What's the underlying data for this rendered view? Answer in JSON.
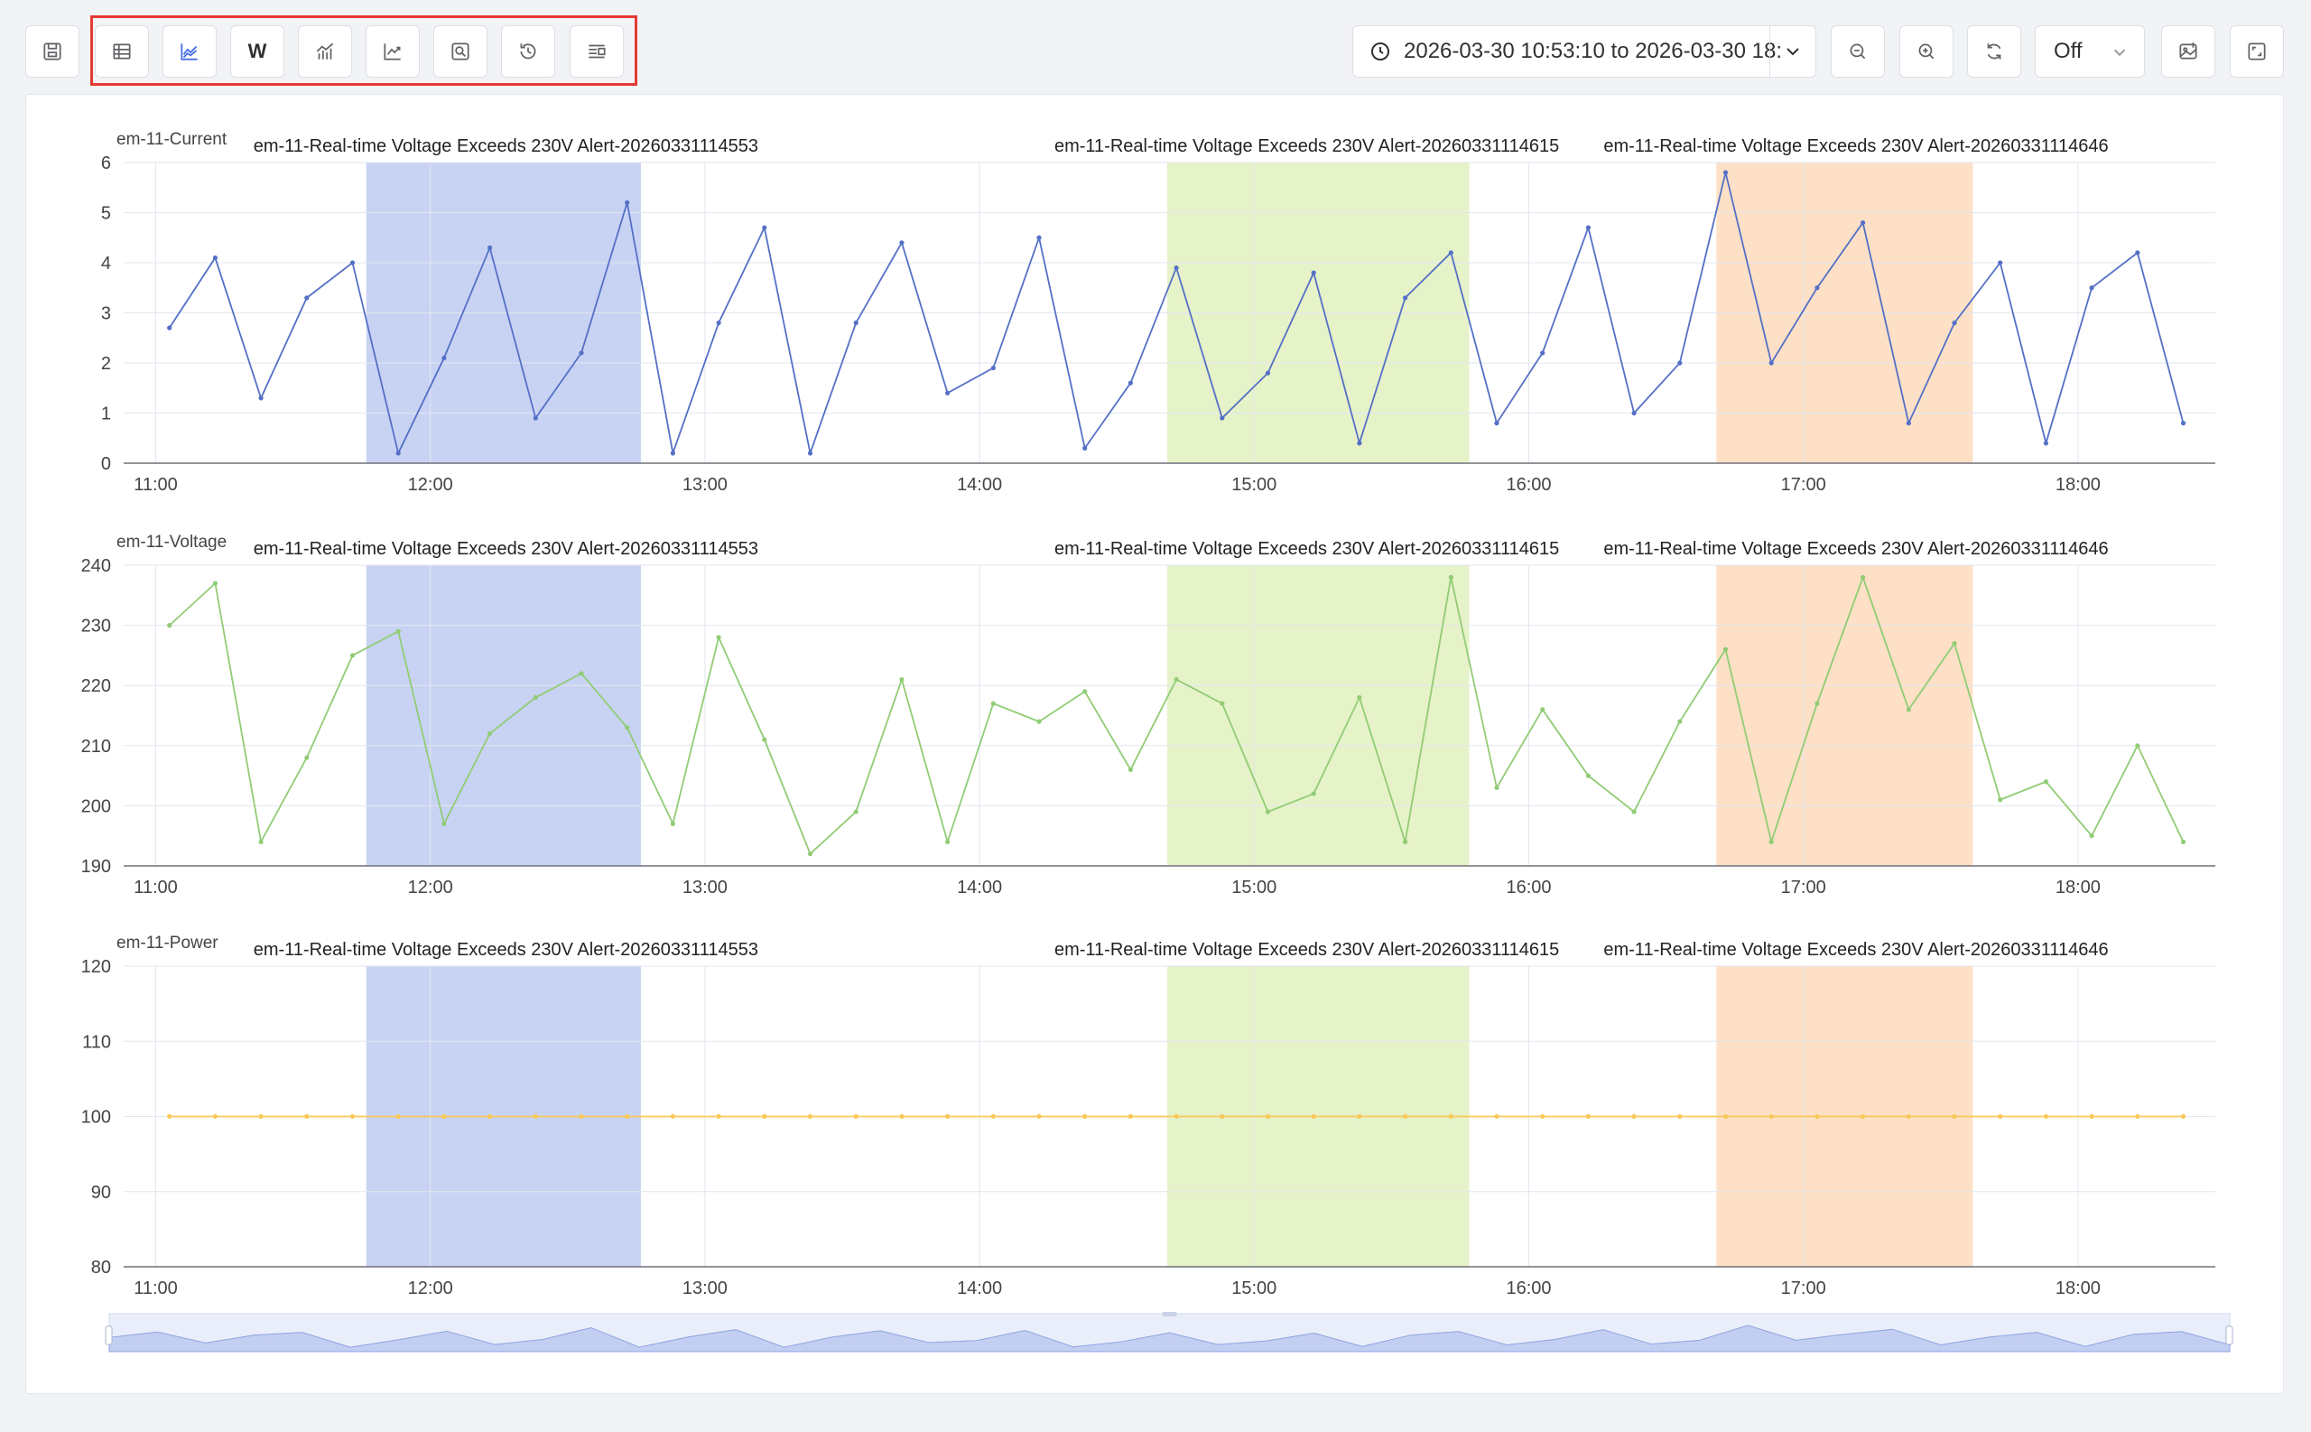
{
  "toolbar": {
    "buttons": [
      {
        "icon": "save-view-icon"
      },
      {
        "icon": "table-icon"
      },
      {
        "icon": "line-chart-icon",
        "active": true
      },
      {
        "icon": "w-text-icon",
        "label": "W"
      },
      {
        "icon": "bar-line-chart-icon"
      },
      {
        "icon": "trend-chart-icon"
      },
      {
        "icon": "zoom-region-icon"
      },
      {
        "icon": "history-icon"
      },
      {
        "icon": "legend-list-icon"
      }
    ],
    "time_range": "2026-03-30 10:53:10 to 2026-03-30 18:",
    "refresh_select": "Off"
  },
  "colors": {
    "current": "#5470c6",
    "voltage": "#91cc75",
    "power": "#fac858",
    "band1": "#c8d3f4",
    "band2": "#e6f2c8",
    "band3": "#fde0c6"
  },
  "chart_data": {
    "type": "line",
    "x_ticks": [
      "11:00",
      "12:00",
      "13:00",
      "14:00",
      "15:00",
      "16:00",
      "17:00",
      "18:00"
    ],
    "x_range": [
      "10:53",
      "18:30"
    ],
    "x": [
      "11:03",
      "11:13",
      "11:23",
      "11:33",
      "11:43",
      "11:53",
      "12:03",
      "12:13",
      "12:23",
      "12:33",
      "12:43",
      "12:53",
      "13:03",
      "13:13",
      "13:23",
      "13:33",
      "13:43",
      "13:53",
      "14:03",
      "14:13",
      "14:23",
      "14:33",
      "14:43",
      "14:53",
      "15:03",
      "15:13",
      "15:23",
      "15:33",
      "15:43",
      "15:53",
      "16:03",
      "16:13",
      "16:23",
      "16:33",
      "16:43",
      "16:53",
      "17:03",
      "17:13",
      "17:23",
      "17:33",
      "17:43",
      "17:53",
      "18:03",
      "18:13",
      "18:23"
    ],
    "annotations": [
      {
        "label": "em-11-Real-time Voltage Exceeds 230V Alert-20260331114553",
        "start": "11:46",
        "end": "12:46"
      },
      {
        "label": "em-11-Real-time Voltage Exceeds 230V Alert-20260331114615",
        "start": "14:41",
        "end": "15:47"
      },
      {
        "label": "em-11-Real-time Voltage Exceeds 230V Alert-20260331114646",
        "start": "16:41",
        "end": "17:37"
      }
    ],
    "panels": [
      {
        "name": "em-11-Current",
        "ylim": [
          0,
          6
        ],
        "y_ticks": [
          0,
          1,
          2,
          3,
          4,
          5,
          6
        ],
        "values": [
          2.7,
          4.1,
          1.3,
          3.3,
          4.0,
          0.2,
          2.1,
          4.3,
          0.9,
          2.2,
          5.2,
          0.2,
          2.8,
          4.7,
          0.2,
          2.8,
          4.4,
          1.4,
          1.9,
          4.5,
          0.3,
          1.6,
          3.9,
          0.9,
          1.8,
          3.8,
          0.4,
          3.3,
          4.2,
          0.8,
          2.2,
          4.7,
          1.0,
          2.0,
          5.8,
          2.0,
          3.5,
          4.8,
          0.8,
          2.8,
          4.0,
          0.4,
          3.5,
          4.2,
          0.8
        ]
      },
      {
        "name": "em-11-Voltage",
        "ylim": [
          190,
          240
        ],
        "y_ticks": [
          190,
          200,
          210,
          220,
          230,
          240
        ],
        "values": [
          230,
          237,
          194,
          208,
          225,
          229,
          197,
          212,
          218,
          222,
          213,
          197,
          228,
          211,
          192,
          199,
          221,
          194,
          217,
          214,
          219,
          206,
          221,
          217,
          199,
          202,
          218,
          194,
          238,
          203,
          216,
          205,
          199,
          214,
          226,
          194,
          217,
          238,
          216,
          227,
          201,
          204,
          195,
          210,
          194
        ]
      },
      {
        "name": "em-11-Power",
        "ylim": [
          80,
          120
        ],
        "y_ticks": [
          80,
          90,
          100,
          110,
          120
        ],
        "values": [
          100,
          100,
          100,
          100,
          100,
          100,
          100,
          100,
          100,
          100,
          100,
          100,
          100,
          100,
          100,
          100,
          100,
          100,
          100,
          100,
          100,
          100,
          100,
          100,
          100,
          100,
          100,
          100,
          100,
          100,
          100,
          100,
          100,
          100,
          100,
          100,
          100,
          100,
          100,
          100,
          100,
          100,
          100,
          100,
          100
        ]
      }
    ]
  }
}
